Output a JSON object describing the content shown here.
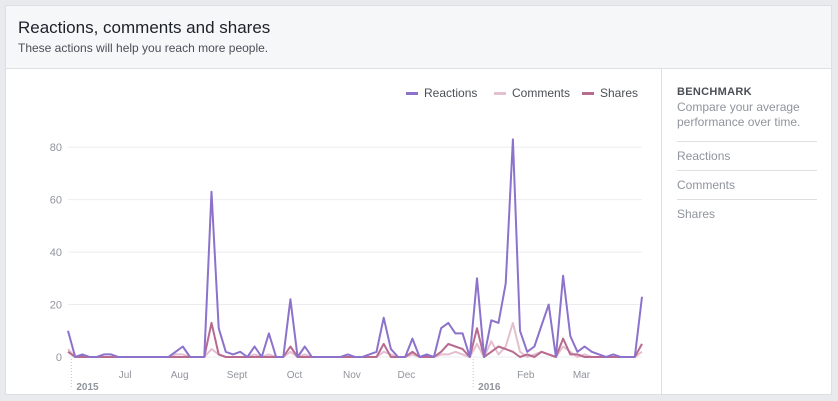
{
  "header": {
    "title": "Reactions, comments and shares",
    "subtitle": "These actions will help you reach more people."
  },
  "legend": [
    {
      "label": "Reactions",
      "color": "#8c72cb"
    },
    {
      "label": "Comments",
      "color": "#e4bfd0"
    },
    {
      "label": "Shares",
      "color": "#b86b8e"
    }
  ],
  "sidebar": {
    "title": "BENCHMARK",
    "description": "Compare your average performance over time.",
    "items": [
      "Reactions",
      "Comments",
      "Shares"
    ]
  },
  "chart_data": {
    "type": "line",
    "ylim": [
      0,
      90
    ],
    "yticks": [
      0,
      20,
      40,
      60,
      80
    ],
    "xticks": [
      {
        "label": "2015",
        "bold": true
      },
      {
        "label": "Jul",
        "bold": false
      },
      {
        "label": "Aug",
        "bold": false
      },
      {
        "label": "Sept",
        "bold": false
      },
      {
        "label": "Oct",
        "bold": false
      },
      {
        "label": "Nov",
        "bold": false
      },
      {
        "label": "Dec",
        "bold": false
      },
      {
        "label": "2016",
        "bold": true
      },
      {
        "label": "Feb",
        "bold": false
      },
      {
        "label": "Mar",
        "bold": false
      }
    ],
    "grid": true,
    "legend_position": "top-right",
    "series": [
      {
        "name": "Reactions",
        "color": "#8c72cb",
        "values": [
          10,
          0,
          1,
          0,
          0,
          1,
          1,
          0,
          0,
          0,
          0,
          0,
          0,
          0,
          0,
          2,
          4,
          0,
          0,
          0,
          63,
          11,
          2,
          1,
          2,
          0,
          4,
          0,
          9,
          0,
          0,
          22,
          0,
          4,
          0,
          0,
          0,
          0,
          0,
          1,
          0,
          0,
          1,
          2,
          15,
          3,
          0,
          0,
          7,
          0,
          1,
          0,
          11,
          13,
          9,
          9,
          0,
          30,
          0,
          14,
          13,
          28,
          83,
          10,
          2,
          4,
          12,
          20,
          0,
          31,
          8,
          2,
          4,
          2,
          1,
          0,
          1,
          0,
          0,
          0,
          23
        ]
      },
      {
        "name": "Comments",
        "color": "#e4bfd0",
        "values": [
          3,
          0,
          0,
          0,
          0,
          0,
          0,
          0,
          0,
          0,
          0,
          0,
          0,
          0,
          0,
          1,
          1,
          0,
          0,
          0,
          3,
          1,
          0,
          0,
          0,
          0,
          1,
          0,
          1,
          0,
          0,
          2,
          0,
          1,
          0,
          0,
          0,
          0,
          0,
          0,
          0,
          0,
          0,
          0,
          2,
          1,
          0,
          0,
          1,
          0,
          0,
          0,
          1,
          1,
          2,
          1,
          0,
          5,
          0,
          6,
          1,
          4,
          13,
          2,
          0,
          1,
          2,
          1,
          0,
          4,
          2,
          0,
          1,
          0,
          0,
          0,
          0,
          0,
          0,
          0,
          2
        ]
      },
      {
        "name": "Shares",
        "color": "#b86b8e",
        "values": [
          2,
          0,
          0,
          0,
          0,
          0,
          0,
          0,
          0,
          0,
          0,
          0,
          0,
          0,
          0,
          0,
          0,
          0,
          0,
          0,
          13,
          1,
          0,
          0,
          0,
          0,
          0,
          0,
          0,
          0,
          0,
          4,
          0,
          0,
          0,
          0,
          0,
          0,
          0,
          0,
          0,
          0,
          0,
          0,
          5,
          0,
          0,
          0,
          2,
          0,
          0,
          0,
          2,
          5,
          4,
          3,
          0,
          11,
          0,
          2,
          4,
          3,
          2,
          0,
          1,
          0,
          2,
          1,
          0,
          7,
          1,
          1,
          0,
          0,
          0,
          0,
          0,
          0,
          0,
          0,
          5
        ]
      }
    ]
  }
}
